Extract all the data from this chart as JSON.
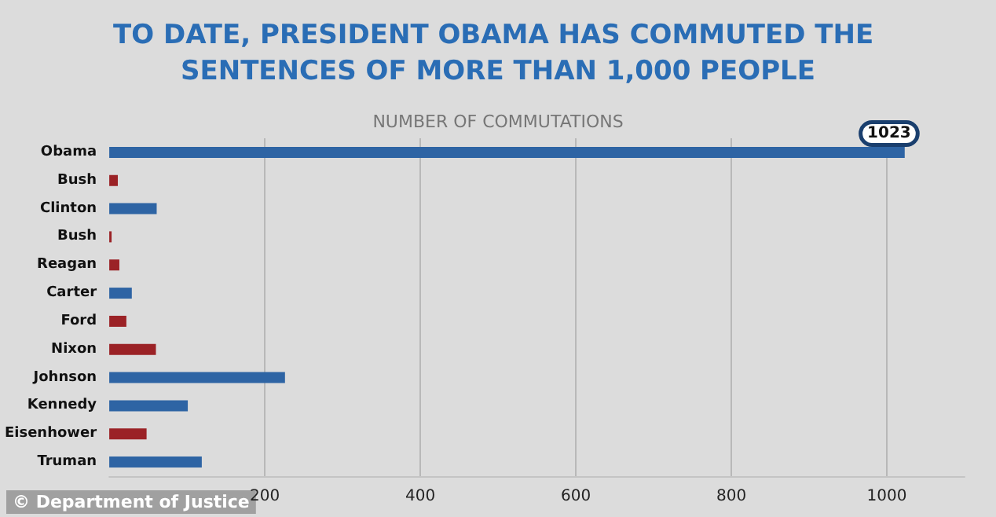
{
  "chart_data": {
    "type": "bar",
    "orientation": "horizontal",
    "title": "TO DATE, PRESIDENT OBAMA HAS COMMUTED THE SENTENCES OF MORE THAN 1,000 PEOPLE",
    "xlabel": "NUMBER OF COMMUTATIONS",
    "categories": [
      "Obama",
      "Bush",
      "Clinton",
      "Bush",
      "Reagan",
      "Carter",
      "Ford",
      "Nixon",
      "Johnson",
      "Kennedy",
      "Eisenhower",
      "Truman"
    ],
    "values": [
      1023,
      11,
      61,
      3,
      13,
      29,
      22,
      60,
      226,
      101,
      48,
      119
    ],
    "colors": [
      "#2e64a4",
      "#9b2226",
      "#2e64a4",
      "#9b2226",
      "#9b2226",
      "#2e64a4",
      "#9b2226",
      "#9b2226",
      "#2e64a4",
      "#2e64a4",
      "#9b2226",
      "#2e64a4"
    ],
    "value_labels": [
      "1023",
      null,
      null,
      null,
      null,
      null,
      null,
      null,
      null,
      null,
      null,
      null
    ],
    "xlim": [
      0,
      1100
    ],
    "xticks": [
      200,
      400,
      600,
      800,
      1000
    ],
    "grid": "x",
    "annotations": [
      "© Department of Justice"
    ]
  }
}
